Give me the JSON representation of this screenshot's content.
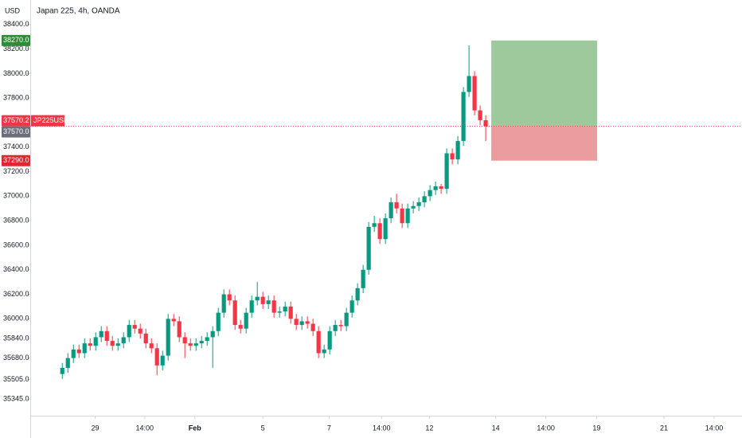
{
  "chart_data": {
    "type": "candlestick",
    "title": "Japan 225, 4h, OANDA",
    "currency": "USD",
    "up_color": "#089981",
    "down_color": "#f23645",
    "ylim": [
      35210,
      38600
    ],
    "yticks": [
      {
        "value": 38400,
        "label": "38400.0"
      },
      {
        "value": 38200,
        "label": "38200.0"
      },
      {
        "value": 38000,
        "label": "38000.0"
      },
      {
        "value": 37800,
        "label": "37800.0"
      },
      {
        "value": 37400,
        "label": "37400.0"
      },
      {
        "value": 37200,
        "label": "37200.0"
      },
      {
        "value": 37000,
        "label": "37000.0"
      },
      {
        "value": 36800,
        "label": "36800.0"
      },
      {
        "value": 36600,
        "label": "36600.0"
      },
      {
        "value": 36400,
        "label": "36400.0"
      },
      {
        "value": 36200,
        "label": "36200.0"
      },
      {
        "value": 36000,
        "label": "36000.0"
      },
      {
        "value": 35840,
        "label": "35840.0"
      },
      {
        "value": 35680,
        "label": "35680.0"
      },
      {
        "value": 35505,
        "label": "35505.0"
      },
      {
        "value": 35345,
        "label": "35345.0"
      }
    ],
    "xlim": [
      -5.75,
      122
    ],
    "xticks": [
      {
        "value": 5.9,
        "label": "29"
      },
      {
        "value": 14.8,
        "label": "14:00"
      },
      {
        "value": 23.8,
        "label": "Feb"
      },
      {
        "value": 36,
        "label": "5"
      },
      {
        "value": 47.9,
        "label": "7"
      },
      {
        "value": 57.3,
        "label": "14:00"
      },
      {
        "value": 65.9,
        "label": "12"
      },
      {
        "value": 77.8,
        "label": "14"
      },
      {
        "value": 86.8,
        "label": "14:00"
      },
      {
        "value": 95.9,
        "label": "19"
      },
      {
        "value": 108,
        "label": "21"
      },
      {
        "value": 117,
        "label": "14:00"
      }
    ],
    "open": [
      35550,
      35600,
      35680,
      35750,
      35720,
      35800,
      35780,
      35850,
      35900,
      35820,
      35780,
      35800,
      35850,
      35950,
      35920,
      35880,
      35800,
      35760,
      35620,
      35700,
      36000,
      35980,
      35850,
      35800,
      35780,
      35800,
      35820,
      35850,
      35900,
      36050,
      36200,
      36150,
      35950,
      35920,
      36050,
      36150,
      36180,
      36120,
      36150,
      36050,
      36060,
      36100,
      36000,
      35950,
      35980,
      35960,
      35900,
      35720,
      35750,
      35900,
      35950,
      35940,
      36050,
      36150,
      36250,
      36400,
      36750,
      36780,
      36650,
      36820,
      36950,
      36900,
      36780,
      36900,
      36920,
      36950,
      37000,
      37050,
      37080,
      37060,
      37350,
      37300,
      37450,
      37850,
      37980,
      37700,
      37620
    ],
    "high": [
      35640,
      35720,
      35790,
      35790,
      35840,
      35840,
      35890,
      35940,
      35940,
      35860,
      35840,
      35890,
      35990,
      35990,
      35960,
      35920,
      35840,
      35800,
      35740,
      36040,
      36040,
      36020,
      35890,
      35840,
      35840,
      35860,
      35890,
      35940,
      36090,
      36240,
      36240,
      36190,
      35990,
      36090,
      36190,
      36300,
      36220,
      36190,
      36190,
      36100,
      36140,
      36140,
      36040,
      36020,
      36020,
      36000,
      35940,
      35790,
      35940,
      35990,
      35990,
      36090,
      36190,
      36290,
      36440,
      36790,
      36840,
      36820,
      36860,
      36990,
      37020,
      36940,
      36940,
      36960,
      36990,
      37040,
      37090,
      37120,
      37100,
      37390,
      37390,
      37490,
      37890,
      38230,
      38020,
      37740,
      37660
    ],
    "low": [
      35510,
      35560,
      35640,
      35680,
      35680,
      35740,
      35740,
      35810,
      35780,
      35740,
      35740,
      35760,
      35810,
      35880,
      35840,
      35760,
      35720,
      35540,
      35580,
      35660,
      35940,
      35810,
      35680,
      35740,
      35740,
      35760,
      35780,
      35600,
      35860,
      36010,
      36110,
      35910,
      35880,
      35880,
      36010,
      36110,
      36080,
      36080,
      36010,
      36010,
      36020,
      35960,
      35910,
      35910,
      35920,
      35860,
      35680,
      35680,
      35710,
      35860,
      35900,
      35900,
      36010,
      36110,
      36210,
      36360,
      36710,
      36610,
      36610,
      36780,
      36860,
      36740,
      36740,
      36860,
      36880,
      36910,
      36960,
      37010,
      37020,
      37020,
      37260,
      37260,
      37410,
      37810,
      37660,
      37580,
      37450
    ],
    "close": [
      35600,
      35680,
      35750,
      35720,
      35800,
      35780,
      35850,
      35900,
      35820,
      35780,
      35800,
      35850,
      35950,
      35920,
      35880,
      35800,
      35760,
      35620,
      35700,
      36000,
      35980,
      35850,
      35800,
      35780,
      35800,
      35820,
      35850,
      35900,
      36050,
      36200,
      36150,
      35950,
      35920,
      36050,
      36150,
      36180,
      36120,
      36150,
      36050,
      36060,
      36100,
      36000,
      35950,
      35980,
      35960,
      35900,
      35720,
      35750,
      35900,
      35950,
      35940,
      36050,
      36150,
      36250,
      36400,
      36750,
      36780,
      36650,
      36820,
      36950,
      36900,
      36780,
      36900,
      36920,
      36950,
      37000,
      37050,
      37080,
      37060,
      37350,
      37300,
      37450,
      37850,
      37980,
      37700,
      37620,
      37570
    ],
    "position": {
      "start": 77,
      "end": 96,
      "target": 38270,
      "entry": 37570,
      "stop": 37290,
      "profit_color": "#9dc99d",
      "loss_color": "#eb9c9f"
    },
    "badges": [
      {
        "value": 38270,
        "label": "38270.0",
        "color": "#2e8b36"
      },
      {
        "value": 37570.2,
        "label": "37570.2",
        "color": "#f23645"
      },
      {
        "value": 37570,
        "label": "37570.0",
        "color": "#6b6f7a"
      },
      {
        "value": 37290,
        "label": "37290.0",
        "color": "#e0262f"
      }
    ],
    "last_price": {
      "value": 37570.2,
      "symbol": "JP225USD",
      "color": "#f23645"
    }
  }
}
